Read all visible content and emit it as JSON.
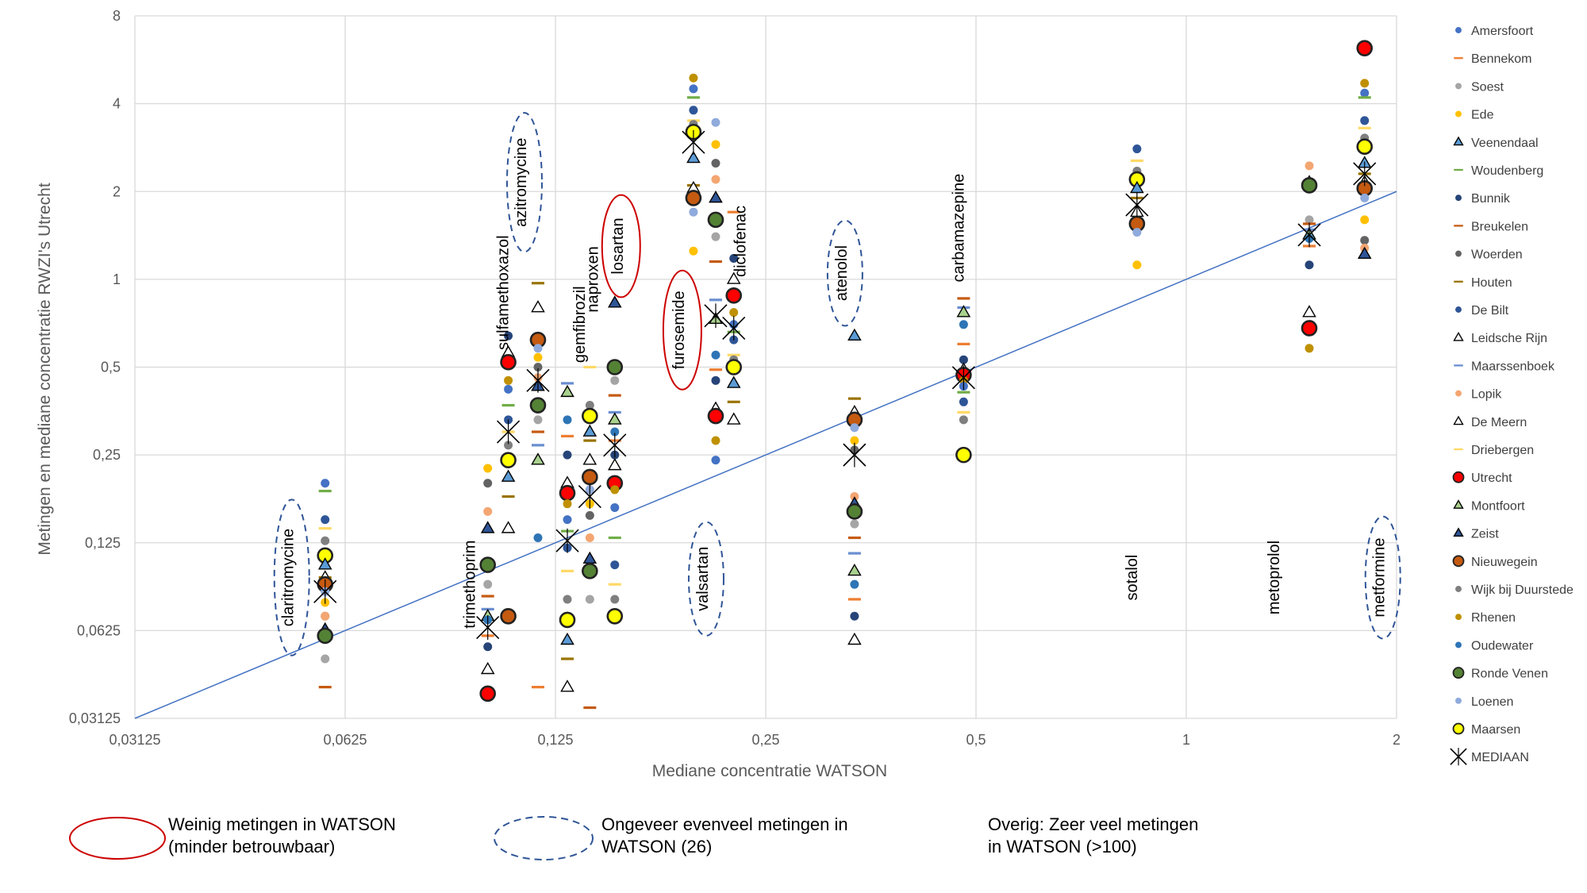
{
  "chart_data": {
    "type": "scatter",
    "title": "",
    "xlabel": "Mediane concentratie WATSON",
    "ylabel": "Metingen en mediane concentratie RWZI's Utrecht",
    "xscale": "log2",
    "yscale": "log2",
    "xlim": [
      0.03125,
      2
    ],
    "ylim": [
      0.03125,
      8
    ],
    "x_ticks": [
      "0,03125",
      "0,0625",
      "0,125",
      "0,25",
      "0,5",
      "1",
      "2"
    ],
    "y_ticks": [
      "0,03125",
      "0,0625",
      "0,125",
      "0,25",
      "0,5",
      "1",
      "2",
      "4",
      "8"
    ],
    "grid": true,
    "legend_position": "right",
    "reference_line": "y = x",
    "series": [
      {
        "name": "Amersfoort",
        "marker": "dot",
        "color": "#4472c4"
      },
      {
        "name": "Bennekom",
        "marker": "dash",
        "color": "#ed7d31"
      },
      {
        "name": "Soest",
        "marker": "dot",
        "color": "#a5a5a5"
      },
      {
        "name": "Ede",
        "marker": "dot",
        "color": "#ffc000"
      },
      {
        "name": "Veenendaal",
        "marker": "triangle",
        "color": "#5b9bd5"
      },
      {
        "name": "Woudenberg",
        "marker": "dash",
        "color": "#70ad47"
      },
      {
        "name": "Bunnik",
        "marker": "dot",
        "color": "#264478"
      },
      {
        "name": "Breukelen",
        "marker": "dash",
        "color": "#c55a11"
      },
      {
        "name": "Woerden",
        "marker": "dot",
        "color": "#636363"
      },
      {
        "name": "Houten",
        "marker": "dash",
        "color": "#997300"
      },
      {
        "name": "De Bilt",
        "marker": "dot",
        "color": "#2e5597"
      },
      {
        "name": "Leidsche Rijn",
        "marker": "triangle",
        "color": "#ffffff"
      },
      {
        "name": "Maarssenboek",
        "marker": "dash",
        "color": "#698ed0"
      },
      {
        "name": "Lopik",
        "marker": "dot",
        "color": "#f4a672"
      },
      {
        "name": "De Meern",
        "marker": "triangle",
        "color": "#ffffff"
      },
      {
        "name": "Driebergen",
        "marker": "dash",
        "color": "#ffd966"
      },
      {
        "name": "Utrecht",
        "marker": "circle",
        "color": "#ff0000"
      },
      {
        "name": "Montfoort",
        "marker": "triangle",
        "color": "#a9d18e"
      },
      {
        "name": "Zeist",
        "marker": "triangle",
        "color": "#2f5597"
      },
      {
        "name": "Nieuwegein",
        "marker": "circle",
        "color": "#c55a11"
      },
      {
        "name": "Wijk bij Duurstede",
        "marker": "dot",
        "color": "#7f7f7f"
      },
      {
        "name": "Rhenen",
        "marker": "dot",
        "color": "#bf9000"
      },
      {
        "name": "Oudewater",
        "marker": "dot",
        "color": "#2e75b6"
      },
      {
        "name": "Ronde Venen",
        "marker": "circle",
        "color": "#548235"
      },
      {
        "name": "Loenen",
        "marker": "dot",
        "color": "#8faadc"
      },
      {
        "name": "Maarsen",
        "marker": "circle",
        "color": "#ffff00"
      },
      {
        "name": "MEDIAAN",
        "marker": "star",
        "color": "#000000"
      }
    ],
    "substances": [
      {
        "name": "claritromycine",
        "watson": 0.0585,
        "median": 0.085,
        "values": [
          0.2,
          0.188,
          0.15,
          0.14,
          0.127,
          0.113,
          0.105,
          0.095,
          0.095,
          0.09,
          0.085,
          0.078,
          0.07,
          0.07,
          0.063,
          0.06,
          0.05,
          0.04
        ],
        "group": "similar"
      },
      {
        "name": "trimethoprim",
        "watson": 0.1,
        "median": 0.064,
        "values": [
          0.225,
          0.2,
          0.16,
          0.14,
          0.105,
          0.09,
          0.082,
          0.074,
          0.07,
          0.068,
          0.06,
          0.055,
          0.046,
          0.038
        ],
        "group": "many"
      },
      {
        "name": "sulfamethoxazol",
        "watson": 0.107,
        "median": 0.3,
        "values": [
          0.64,
          0.56,
          0.52,
          0.45,
          0.42,
          0.37,
          0.33,
          0.3,
          0.27,
          0.24,
          0.21,
          0.18,
          0.14,
          0.07
        ],
        "group": "many"
      },
      {
        "name": "azitromycine",
        "watson": 0.118,
        "median": 0.45,
        "values": [
          0.97,
          0.8,
          0.62,
          0.58,
          0.54,
          0.5,
          0.46,
          0.43,
          0.37,
          0.33,
          0.3,
          0.27,
          0.24,
          0.13,
          0.04
        ],
        "group": "similar"
      },
      {
        "name": "gemfibrozil",
        "watson": 0.13,
        "median": 0.127,
        "values": [
          0.44,
          0.41,
          0.33,
          0.29,
          0.25,
          0.2,
          0.185,
          0.17,
          0.15,
          0.137,
          0.12,
          0.1,
          0.08,
          0.068,
          0.058,
          0.05,
          0.04
        ],
        "group": "many"
      },
      {
        "name": "naproxen",
        "watson": 0.14,
        "median": 0.18,
        "values": [
          0.5,
          0.37,
          0.34,
          0.3,
          0.28,
          0.24,
          0.21,
          0.19,
          0.17,
          0.155,
          0.13,
          0.11,
          0.1,
          0.08,
          0.034
        ],
        "group": "many"
      },
      {
        "name": "losartan",
        "watson": 0.152,
        "median": 0.27,
        "values": [
          0.83,
          0.5,
          0.45,
          0.4,
          0.35,
          0.33,
          0.3,
          0.28,
          0.25,
          0.23,
          0.2,
          0.19,
          0.165,
          0.13,
          0.105,
          0.09,
          0.08,
          0.07
        ],
        "group": "few"
      },
      {
        "name": "furosemide",
        "watson": 0.197,
        "median": 2.95,
        "values": [
          4.9,
          4.5,
          4.2,
          3.8,
          3.5,
          3.4,
          3.2,
          2.6,
          2.1,
          2.05,
          1.9,
          1.7,
          1.25
        ],
        "group": "few"
      },
      {
        "name": "valsartan",
        "watson": 0.212,
        "median": 0.75,
        "values": [
          3.45,
          2.9,
          2.5,
          2.2,
          1.9,
          1.6,
          1.4,
          1.15,
          0.85,
          0.73,
          0.55,
          0.49,
          0.45,
          0.36,
          0.34,
          0.28,
          0.24
        ],
        "group": "similar"
      },
      {
        "name": "diclofenac",
        "watson": 0.225,
        "median": 0.68,
        "values": [
          1.7,
          1.18,
          1.0,
          0.88,
          0.77,
          0.7,
          0.66,
          0.62,
          0.55,
          0.53,
          0.5,
          0.44,
          0.38,
          0.33
        ],
        "group": "many"
      },
      {
        "name": "atenolol",
        "watson": 0.335,
        "median": 0.25,
        "values": [
          0.64,
          0.39,
          0.35,
          0.33,
          0.31,
          0.28,
          0.26,
          0.18,
          0.17,
          0.16,
          0.145,
          0.13,
          0.115,
          0.1,
          0.09,
          0.08,
          0.07,
          0.058
        ],
        "group": "similar"
      },
      {
        "name": "carbamazepine",
        "watson": 0.48,
        "median": 0.46,
        "values": [
          0.86,
          0.8,
          0.77,
          0.7,
          0.6,
          0.53,
          0.49,
          0.47,
          0.45,
          0.43,
          0.41,
          0.38,
          0.35,
          0.33,
          0.25
        ],
        "group": "many"
      },
      {
        "name": "sotalol",
        "watson": 0.85,
        "median": 1.8,
        "values": [
          2.8,
          2.55,
          2.35,
          2.2,
          2.05,
          1.9,
          1.7,
          1.55,
          1.45,
          1.12
        ],
        "group": "many"
      },
      {
        "name": "metoprolol",
        "watson": 1.5,
        "median": 1.42,
        "values": [
          2.45,
          2.15,
          2.1,
          1.6,
          1.55,
          1.48,
          1.42,
          1.38,
          1.3,
          1.12,
          0.77,
          0.68,
          0.58
        ],
        "group": "many"
      },
      {
        "name": "metformine",
        "watson": 1.8,
        "median": 2.3,
        "values": [
          6.2,
          4.7,
          4.35,
          4.2,
          3.5,
          3.3,
          3.05,
          2.85,
          2.5,
          2.3,
          2.15,
          2.05,
          1.9,
          1.6,
          1.36,
          1.28,
          1.22
        ],
        "group": "similar"
      }
    ]
  },
  "notes": [
    {
      "key": "few",
      "marker": "red-ellipse",
      "text": "Weinig metingen in WATSON\n(minder betrouwbaar)"
    },
    {
      "key": "similar",
      "marker": "blue-dashed-ellipse",
      "text": "Ongeveer evenveel metingen in\n WATSON (26)"
    },
    {
      "key": "many",
      "marker": "none",
      "text": "Overig: Zeer veel metingen\n in WATSON (>100)"
    }
  ],
  "colors": {
    "grid": "#d9d9d9",
    "diagonal": "#4472c4",
    "few_ring": "#cc0000",
    "similar_ring": "#2f5597"
  }
}
